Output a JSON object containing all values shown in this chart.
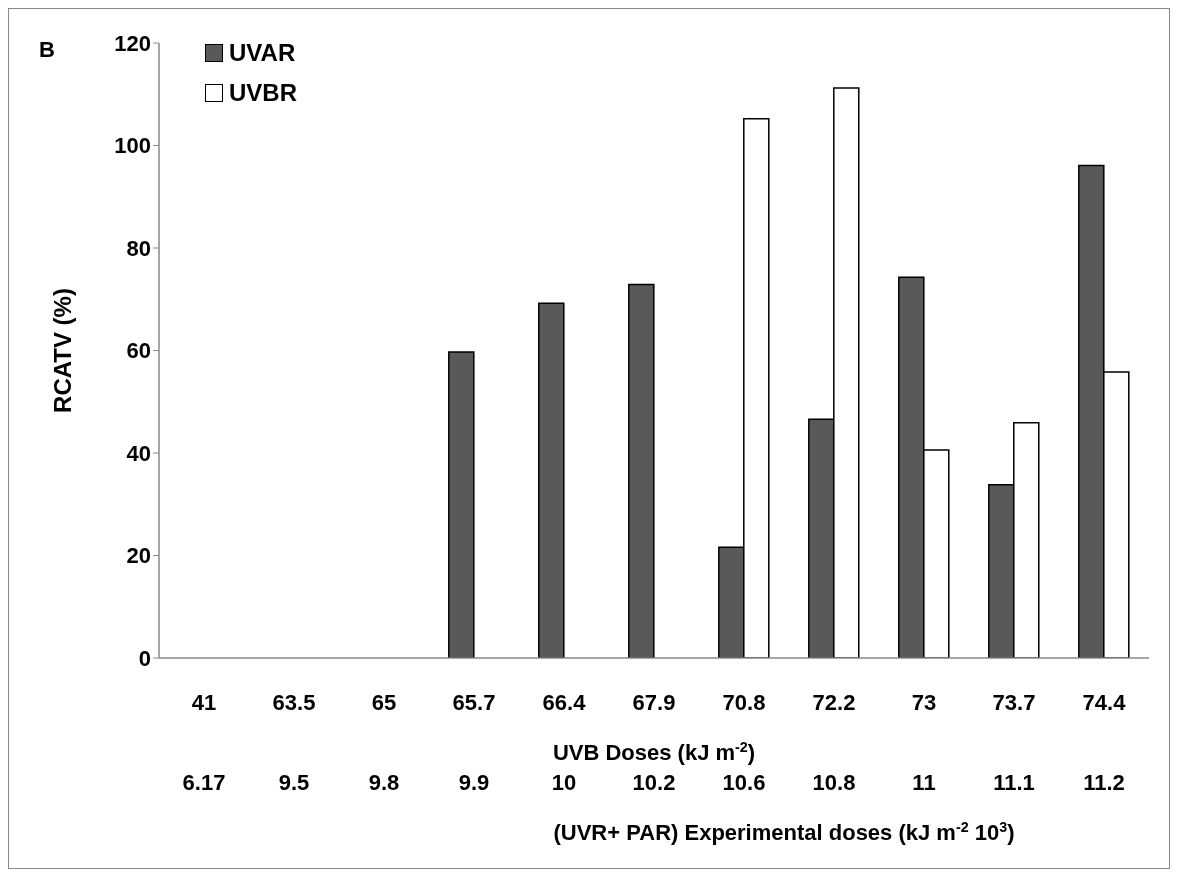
{
  "chart_data": {
    "type": "bar",
    "categories": [
      "41",
      "63.5",
      "65",
      "65.7",
      "66.4",
      "67.9",
      "70.8",
      "72.2",
      "73",
      "73.7",
      "74.4"
    ],
    "xlabel": "UVB Doses (kJ m$^{-2}$)",
    "x2label": "(UVR+ PAR) Experimental doses (kJ m$^{-2}$ 10$^{3}$)",
    "ylabel": "RCATV (%)",
    "annotations": [
      "B",
      "6.17",
      "9.5",
      "9.8",
      "9.9",
      "10",
      "10.2",
      "10.6",
      "10.8",
      "11",
      "11.1",
      "11.2"
    ],
    "series": [
      {
        "name": "UVAR",
        "color": "#595959",
        "values": [
          null,
          null,
          null,
          59.7,
          69.2,
          72.9,
          21.6,
          46.6,
          74.3,
          33.8,
          96.1
        ]
      },
      {
        "name": "UVBR",
        "color": "#ffffff",
        "values": [
          null,
          null,
          null,
          null,
          null,
          null,
          105.2,
          111.2,
          40.6,
          45.9,
          55.8
        ]
      }
    ],
    "ylim": [
      0,
      120
    ],
    "yticks": [
      0,
      20,
      40,
      60,
      80,
      100,
      120
    ],
    "legend": "top left"
  }
}
